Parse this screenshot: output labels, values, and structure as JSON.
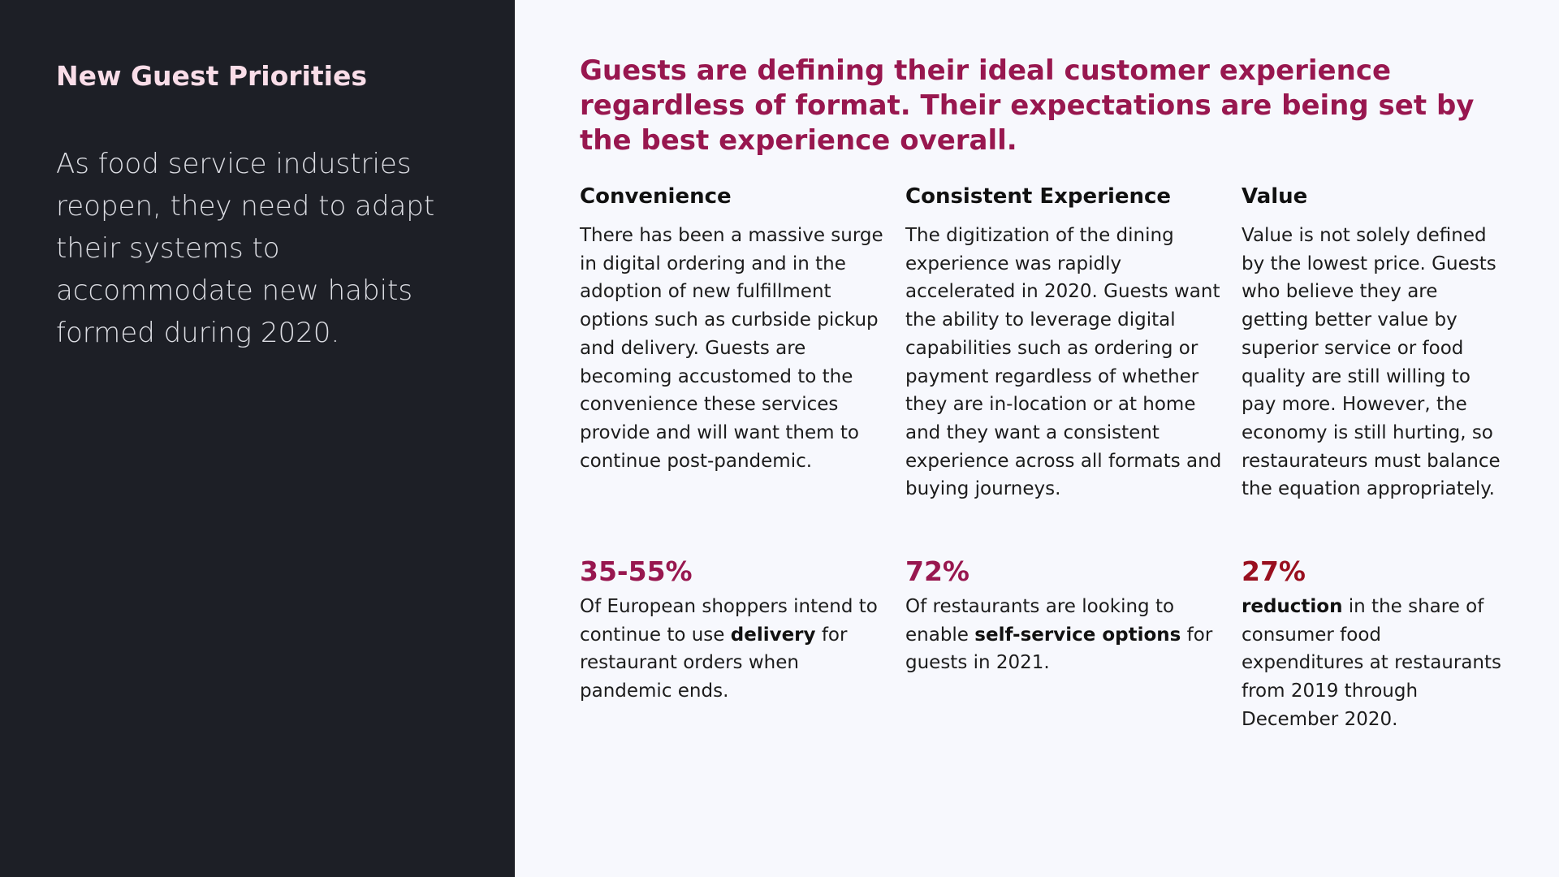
{
  "colors": {
    "left_bg": "#1d1f26",
    "right_bg": "#f7f8fd",
    "accent": "#98174f",
    "accent_dark_red": "#990f1f",
    "left_title": "#f9dde8"
  },
  "sidebar": {
    "title": "New Guest Priorities",
    "intro": "As food service industries reopen, they need to adapt their systems to accommodate new habits formed during 2020."
  },
  "main": {
    "headline": "Guests are defining their ideal customer experience regardless of format. Their expectations are being set by the best experience overall.",
    "columns": [
      {
        "heading": "Convenience",
        "body": "There has been a massive surge in digital ordering and in the adoption of new fulfillment options such as curbside pickup and delivery. Guests are becoming accustomed to the convenience these services provide and will want them to continue post-pandemic."
      },
      {
        "heading": "Consistent Experience",
        "body": "The digitization of the dining experience was rapidly accelerated in 2020. Guests want the ability to leverage digital capabilities such as ordering or payment regardless of whether they are in-location or at home and they want a consistent experience across all formats and buying journeys."
      },
      {
        "heading": "Value",
        "body": "Value is not solely defined by the lowest price. Guests who believe they are getting better value by superior service or food quality are still willing to pay more. However, the economy is still hurting, so restaurateurs must balance the equation appropriately."
      }
    ],
    "stats": [
      {
        "value": "35-55%",
        "color": "#98174f",
        "pre": "Of European shoppers intend to continue to use ",
        "bold": "delivery",
        "post": " for restaurant orders when pandemic ends."
      },
      {
        "value": "72%",
        "color": "#98174f",
        "pre": "Of restaurants are looking to enable ",
        "bold": "self-service options",
        "post": " for guests in 2021."
      },
      {
        "value": "27%",
        "color": "#990f1f",
        "pre": "",
        "bold": "reduction",
        "post": " in the share of consumer food expenditures at restaurants from 2019 through December 2020."
      }
    ]
  }
}
